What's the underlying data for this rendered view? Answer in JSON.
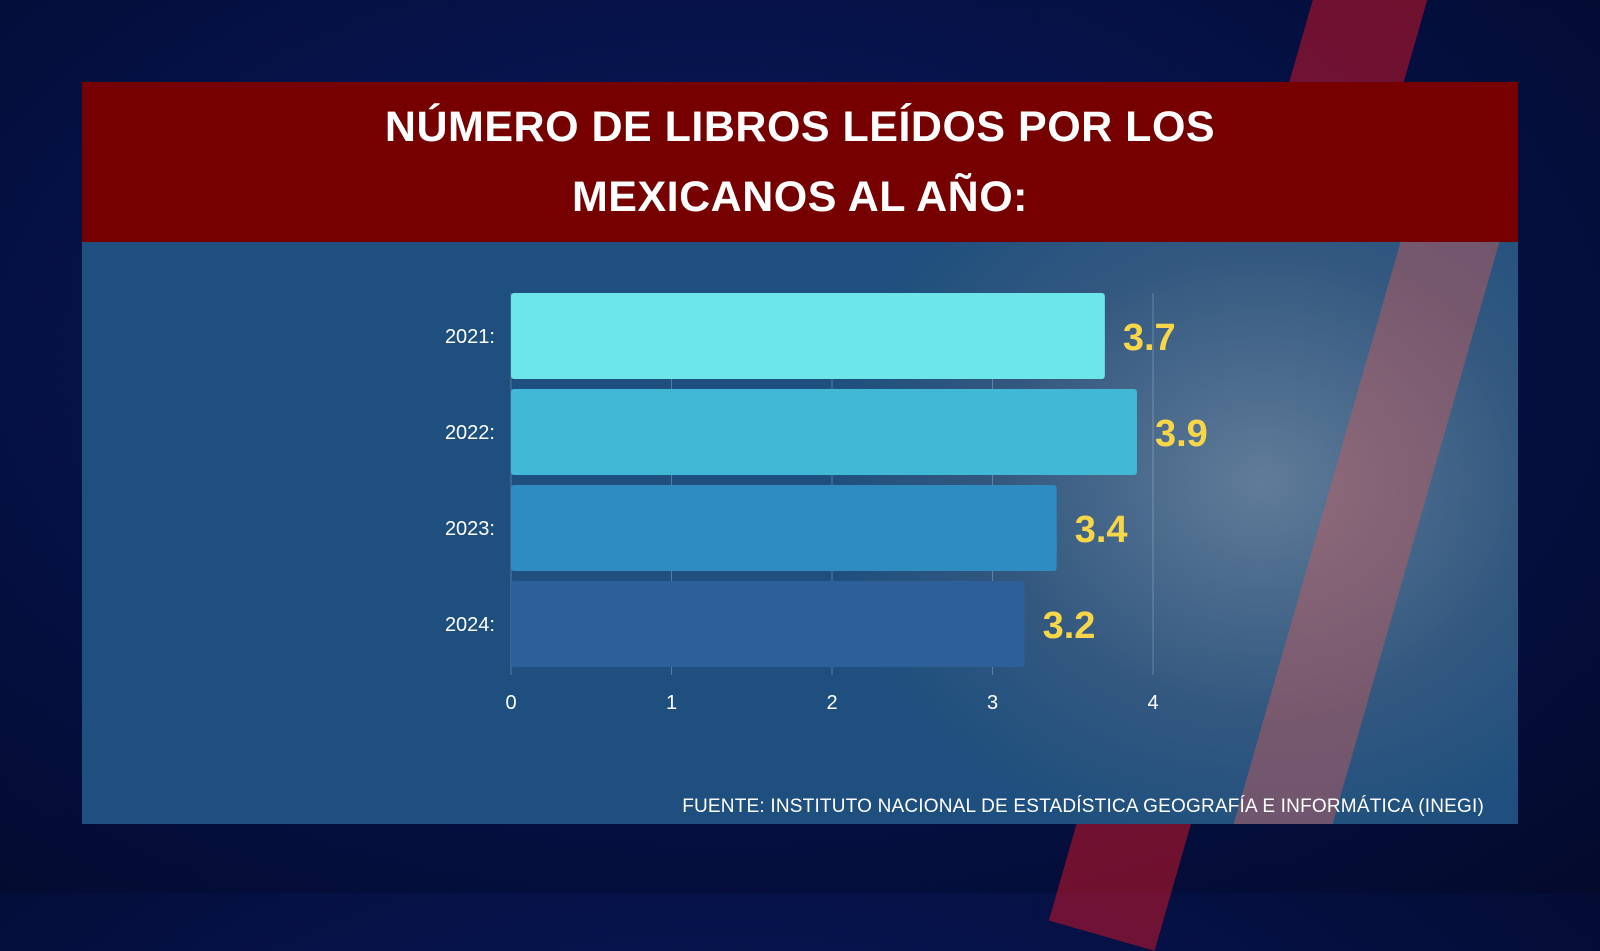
{
  "title": "NÚMERO DE LIBROS LEÍDOS POR LOS MEXICANOS AL AÑO:",
  "source": "FUENTE: INSTITUTO NACIONAL DE ESTADÍSTICA GEOGRAFÍA E INFORMÁTICA (INEGI)",
  "colors": {
    "header_bg": "#760000",
    "card_bg": "#1e4f7e",
    "value_label": "#f7d64a",
    "bars": [
      "#6de6ea",
      "#41b8d6",
      "#2e8cc0",
      "#2d5f99"
    ]
  },
  "chart_data": {
    "type": "bar",
    "orientation": "horizontal",
    "categories": [
      "2021:",
      "2022:",
      "2023:",
      "2024:"
    ],
    "values": [
      3.7,
      3.9,
      3.4,
      3.2
    ],
    "value_labels": [
      "3.7",
      "3.9",
      "3.4",
      "3.2"
    ],
    "xticks": [
      0,
      1,
      2,
      3,
      4
    ],
    "xlim": [
      0,
      4
    ],
    "grid": "vertical",
    "title": "NÚMERO DE LIBROS LEÍDOS POR LOS MEXICANOS AL AÑO:",
    "xlabel": "",
    "ylabel": ""
  }
}
